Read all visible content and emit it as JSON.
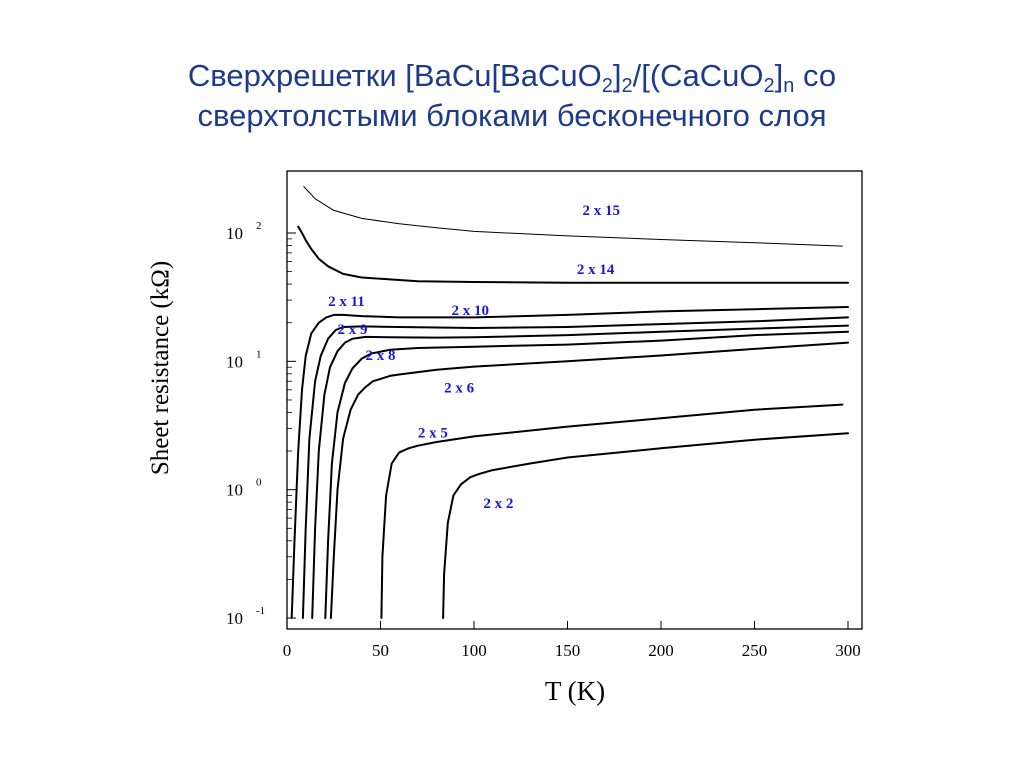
{
  "title": {
    "line1_prefix": "Сверхрешетки [BaCu[BaCuO",
    "sub1": "2",
    "mid1": "]",
    "sub2": "2",
    "mid2": "/[(CaCuO",
    "sub3": "2",
    "mid3": "]",
    "sub4": "n",
    "line1_suffix": " со",
    "line2": "сверхтолстыми блоками бесконечного слоя"
  },
  "colors": {
    "title": "#1f3a8a",
    "labels": "#1a1ad6",
    "curves": "#000000"
  },
  "chart_data": {
    "type": "line",
    "xlabel": "T (K)",
    "ylabel": "Sheet resistance   (kΩ)",
    "xlim": [
      0,
      300
    ],
    "ylim": [
      0.1,
      300
    ],
    "yscale": "log",
    "x_ticks": [
      0,
      50,
      100,
      150,
      200,
      250,
      300
    ],
    "y_ticks": [
      {
        "base": "10",
        "exp": "-1",
        "value": 0.1
      },
      {
        "base": "10",
        "exp": "0",
        "value": 1
      },
      {
        "base": "10",
        "exp": "1",
        "value": 10
      },
      {
        "base": "10",
        "exp": "2",
        "value": 100
      }
    ],
    "series": [
      {
        "name": "2 x 15",
        "thin": true,
        "x": [
          9,
          15,
          25,
          40,
          60,
          80,
          100,
          150,
          200,
          250,
          297
        ],
        "y": [
          230,
          185,
          150,
          130,
          118,
          110,
          103,
          95,
          89,
          84,
          79
        ]
      },
      {
        "name": "2 x 14",
        "x": [
          6,
          8,
          10,
          13,
          17,
          22,
          30,
          40,
          55,
          70,
          100,
          150,
          200,
          250,
          300
        ],
        "y": [
          112,
          100,
          88,
          75,
          63,
          55,
          48,
          45,
          43.5,
          42,
          41.5,
          41,
          41,
          41,
          41
        ]
      },
      {
        "name": "2 x 10",
        "x": [
          2.5,
          4,
          6,
          8,
          10,
          13,
          17,
          21,
          25,
          30,
          40,
          60,
          100,
          150,
          200,
          250,
          300
        ],
        "y": [
          0.1,
          0.4,
          2,
          6,
          11,
          16.5,
          20,
          22,
          23,
          23,
          22.5,
          22,
          22,
          23,
          24.5,
          25.5,
          26.5
        ]
      },
      {
        "name": "2 x 11",
        "x": [
          8.5,
          10,
          12,
          15,
          18,
          22,
          26,
          30,
          40,
          60,
          100,
          150,
          200,
          250,
          300
        ],
        "y": [
          0.1,
          0.5,
          2.5,
          7,
          11,
          15,
          17.5,
          18.5,
          18.7,
          18.5,
          18.2,
          18.5,
          19.5,
          20.5,
          22
        ]
      },
      {
        "name": "2 x 9",
        "x": [
          13.5,
          15,
          17,
          20,
          23,
          27,
          31,
          35,
          42,
          55,
          80,
          100,
          150,
          200,
          250,
          300
        ],
        "y": [
          0.1,
          0.5,
          2,
          5.5,
          9,
          12,
          14,
          15,
          15.5,
          15.4,
          15.3,
          15.4,
          16,
          17,
          18,
          19
        ]
      },
      {
        "name": "2 x 8",
        "x": [
          20.5,
          22,
          24,
          27,
          31,
          35,
          40,
          45,
          55,
          70,
          100,
          150,
          200,
          250,
          300
        ],
        "y": [
          0.1,
          0.4,
          1.6,
          4,
          6.8,
          8.8,
          10.5,
          11.5,
          12.3,
          12.7,
          13,
          13.5,
          14.5,
          16,
          17
        ]
      },
      {
        "name": "2 x 6",
        "x": [
          23.5,
          25,
          27,
          30,
          34,
          38,
          42,
          46,
          50,
          55,
          60,
          80,
          100,
          150,
          200,
          250,
          300
        ],
        "y": [
          0.1,
          0.3,
          1,
          2.5,
          4.2,
          5.5,
          6.3,
          7,
          7.3,
          7.7,
          7.9,
          8.6,
          9.1,
          10,
          11.1,
          12.5,
          14
        ]
      },
      {
        "name": "2 x 5",
        "x": [
          50.5,
          51,
          53,
          56,
          60,
          65,
          70,
          80,
          100,
          150,
          200,
          250,
          297
        ],
        "y": [
          0.1,
          0.3,
          0.9,
          1.6,
          1.95,
          2.1,
          2.2,
          2.35,
          2.6,
          3.1,
          3.6,
          4.2,
          4.6
        ]
      },
      {
        "name": "2 x 2",
        "x": [
          83.5,
          84,
          86,
          89,
          93,
          98,
          103,
          110,
          130,
          150,
          200,
          250,
          300
        ],
        "y": [
          0.1,
          0.22,
          0.55,
          0.9,
          1.1,
          1.25,
          1.33,
          1.42,
          1.6,
          1.78,
          2.1,
          2.45,
          2.75
        ]
      }
    ],
    "label_anchors": [
      {
        "name": "2 x 15",
        "x": 158,
        "y": 138
      },
      {
        "name": "2 x 14",
        "x": 155,
        "y": 48
      },
      {
        "name": "2 x 11",
        "x": 22,
        "y": 27
      },
      {
        "name": "2 x 10",
        "x": 88,
        "y": 23
      },
      {
        "name": "2 x 9",
        "x": 27,
        "y": 16.3
      },
      {
        "name": "2 x 8",
        "x": 42,
        "y": 10.2
      },
      {
        "name": "2 x 6",
        "x": 84,
        "y": 5.7
      },
      {
        "name": "2 x 5",
        "x": 70,
        "y": 2.55
      },
      {
        "name": "2 x 2",
        "x": 105,
        "y": 0.72
      }
    ]
  }
}
